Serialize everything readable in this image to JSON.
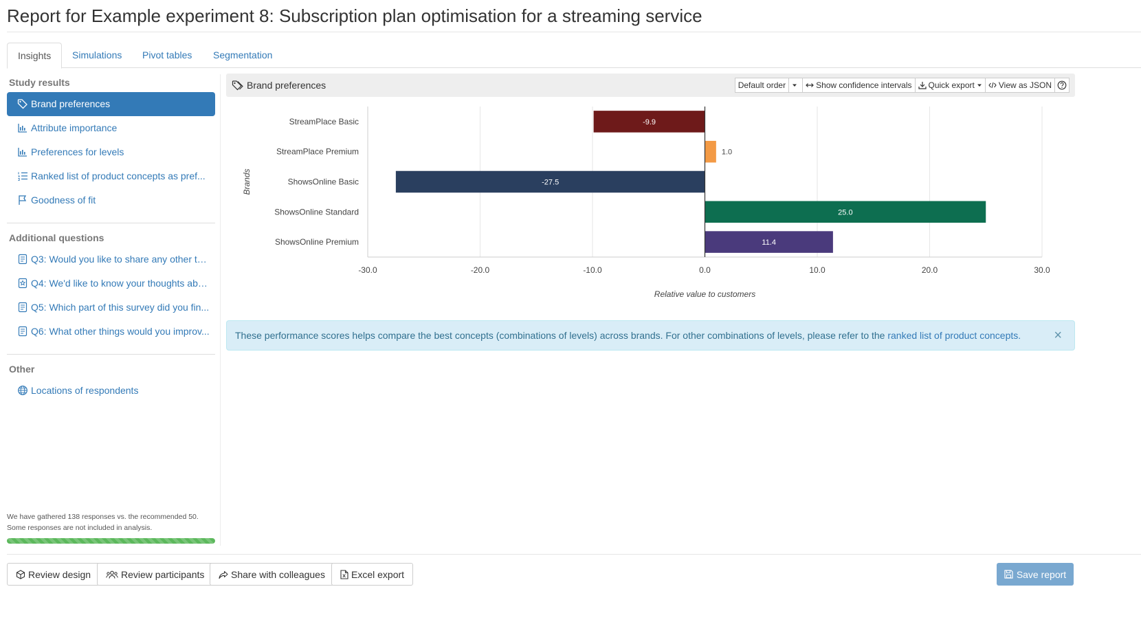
{
  "page": {
    "title": "Report for Example experiment 8: Subscription plan optimisation for a streaming service"
  },
  "tabs": [
    {
      "label": "Insights",
      "active": true
    },
    {
      "label": "Simulations"
    },
    {
      "label": "Pivot tables"
    },
    {
      "label": "Segmentation"
    }
  ],
  "sidebar": {
    "study_heading": "Study results",
    "study_items": [
      {
        "label": "Brand preferences",
        "icon": "tag-icon",
        "active": true
      },
      {
        "label": "Attribute importance",
        "icon": "bar-chart-icon"
      },
      {
        "label": "Preferences for levels",
        "icon": "bar-chart-icon"
      },
      {
        "label": "Ranked list of product concepts as pref...",
        "icon": "list-ol-icon"
      },
      {
        "label": "Goodness of fit",
        "icon": "flag-icon"
      }
    ],
    "additional_heading": "Additional questions",
    "additional_items": [
      {
        "label": "Q3: Would you like to share any other th...",
        "icon": "document-icon"
      },
      {
        "label": "Q4: We'd like to know your thoughts abo...",
        "icon": "star-document-icon"
      },
      {
        "label": "Q5: Which part of this survey did you fin...",
        "icon": "document-icon"
      },
      {
        "label": "Q6: What other things would you improv...",
        "icon": "document-icon"
      }
    ],
    "other_heading": "Other",
    "other_items": [
      {
        "label": "Locations of respondents",
        "icon": "globe-icon"
      }
    ],
    "note": "We have gathered 138 responses vs. the recommended 50. Some responses are not included in analysis.",
    "progress": 1.0
  },
  "panel": {
    "title": "Brand preferences",
    "toolbar": {
      "order": "Default order",
      "confidence": "Show confidence intervals",
      "export": "Quick export",
      "json": "View as JSON"
    }
  },
  "chart_data": {
    "type": "bar",
    "orientation": "horizontal",
    "categories": [
      "StreamPlace Basic",
      "StreamPlace Premium",
      "ShowsOnline Basic",
      "ShowsOnline Standard",
      "ShowsOnline Premium"
    ],
    "values": [
      -9.9,
      1.0,
      -27.5,
      25.0,
      11.4
    ],
    "value_labels": [
      "-9.9",
      "1.0",
      "-27.5",
      "25.0",
      "11.4"
    ],
    "colors": [
      "#6e1a1a",
      "#f39a45",
      "#2a3f5f",
      "#0d6e50",
      "#4a3a7c"
    ],
    "xlabel": "Relative value to customers",
    "ylabel": "Brands",
    "xlim": [
      -30,
      30
    ],
    "xticks": [
      "-30.0",
      "-20.0",
      "-10.0",
      "0.0",
      "10.0",
      "20.0",
      "30.0"
    ],
    "grid": true
  },
  "alert": {
    "text": "These performance scores helps compare the best concepts (combinations of levels) across brands. For other combinations of levels, please refer to the ",
    "link": "ranked list of product concepts.",
    "close": "×"
  },
  "footer": {
    "review_design": "Review design",
    "review_participants": "Review participants",
    "share": "Share with colleagues",
    "excel": "Excel export",
    "save": "Save report"
  }
}
